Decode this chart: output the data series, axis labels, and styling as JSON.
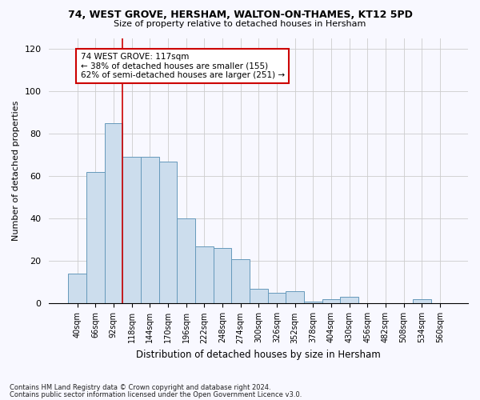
{
  "title1": "74, WEST GROVE, HERSHAM, WALTON-ON-THAMES, KT12 5PD",
  "title2": "Size of property relative to detached houses in Hersham",
  "xlabel": "Distribution of detached houses by size in Hersham",
  "ylabel": "Number of detached properties",
  "footnote1": "Contains HM Land Registry data © Crown copyright and database right 2024.",
  "footnote2": "Contains public sector information licensed under the Open Government Licence v3.0.",
  "bar_labels": [
    "40sqm",
    "66sqm",
    "92sqm",
    "118sqm",
    "144sqm",
    "170sqm",
    "196sqm",
    "222sqm",
    "248sqm",
    "274sqm",
    "300sqm",
    "326sqm",
    "352sqm",
    "378sqm",
    "404sqm",
    "430sqm",
    "456sqm",
    "482sqm",
    "508sqm",
    "534sqm",
    "560sqm"
  ],
  "bar_values": [
    14,
    62,
    85,
    69,
    69,
    67,
    40,
    27,
    26,
    21,
    7,
    5,
    6,
    1,
    2,
    3,
    0,
    0,
    0,
    2,
    0
  ],
  "bar_color": "#ccdded",
  "bar_edge_color": "#6699bb",
  "vline_color": "#cc0000",
  "annotation_text": "74 WEST GROVE: 117sqm\n← 38% of detached houses are smaller (155)\n62% of semi-detached houses are larger (251) →",
  "annotation_box_color": "white",
  "annotation_box_edge": "#cc0000",
  "ylim": [
    0,
    125
  ],
  "yticks": [
    0,
    20,
    40,
    60,
    80,
    100,
    120
  ],
  "background_color": "#f8f8ff",
  "grid_color": "#cccccc"
}
